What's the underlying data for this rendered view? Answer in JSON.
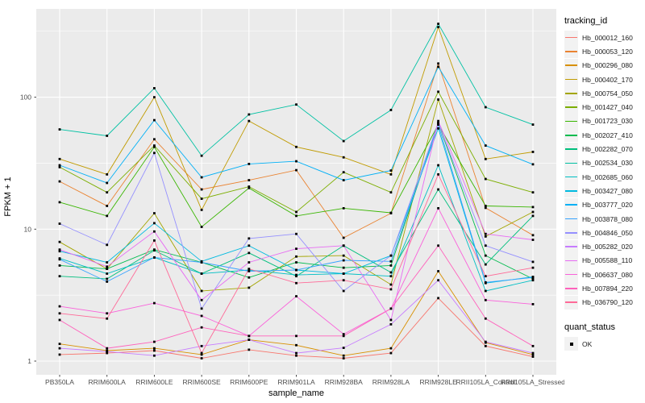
{
  "chart_data": {
    "type": "line",
    "title": "",
    "xlabel": "sample_name",
    "ylabel": "FPKM + 1",
    "y_scale": "log10",
    "y_ticks": [
      1,
      10,
      100
    ],
    "y_minor_ticks": [
      3.162,
      31.62,
      316.2
    ],
    "panel_background": "#EBEBEB",
    "gridline_color": "#FFFFFF",
    "point_shape": "square",
    "point_color": "#000000",
    "tick_label_color": "#4D4D4D",
    "x_categories": [
      "PB350LA",
      "RRIM600LA",
      "RRIM600LE",
      "RRIM600SE",
      "RRIM600PE",
      "RRIM901LA",
      "RRIM928BA",
      "RRIM928LA",
      "RRIM928LE",
      "RRII105LA_Control",
      "RRII105LA_Stressed"
    ],
    "series": [
      {
        "name": "Hb_000012_160",
        "color": "#F8766D",
        "values": [
          1.12,
          1.15,
          1.2,
          1.05,
          1.22,
          1.1,
          1.05,
          1.15,
          3.0,
          1.3,
          1.08
        ]
      },
      {
        "name": "Hb_000053_120",
        "color": "#EA8331",
        "values": [
          23,
          15,
          48,
          20,
          23.5,
          28,
          8.6,
          13.2,
          180,
          14.5,
          9.0
        ]
      },
      {
        "name": "Hb_000296_080",
        "color": "#D89000",
        "values": [
          1.35,
          1.2,
          1.25,
          1.12,
          1.45,
          1.32,
          1.1,
          1.25,
          4.8,
          1.38,
          1.12
        ]
      },
      {
        "name": "Hb_000402_170",
        "color": "#C09B00",
        "values": [
          34,
          26,
          100,
          14,
          66,
          42,
          35,
          26,
          340,
          34,
          38.5
        ]
      },
      {
        "name": "Hb_000754_050",
        "color": "#A3A500",
        "values": [
          8.0,
          5.0,
          13.2,
          3.4,
          3.6,
          6.2,
          6.3,
          3.8,
          96,
          8.8,
          13.5
        ]
      },
      {
        "name": "Hb_001427_040",
        "color": "#7CAE00",
        "values": [
          29.5,
          19,
          43,
          17,
          21,
          13.5,
          27,
          19,
          110,
          24,
          19
        ]
      },
      {
        "name": "Hb_001723_030",
        "color": "#39B600",
        "values": [
          16,
          12.6,
          42,
          10.4,
          20.5,
          12.6,
          14.4,
          13.3,
          62,
          15,
          14.7
        ]
      },
      {
        "name": "Hb_002027_410",
        "color": "#00BB4E",
        "values": [
          5.3,
          5.0,
          7.0,
          5.6,
          4.3,
          5.6,
          5.1,
          5.3,
          64,
          6.3,
          4.2
        ]
      },
      {
        "name": "Hb_002282_070",
        "color": "#00BF7D",
        "values": [
          4.4,
          4.2,
          6.9,
          4.6,
          6.6,
          4.4,
          7.5,
          4.7,
          20,
          5.4,
          12.6
        ]
      },
      {
        "name": "Hb_002534_030",
        "color": "#00C1A3",
        "values": [
          57,
          51,
          117,
          36,
          74,
          88,
          46.5,
          80,
          360,
          84,
          62
        ]
      },
      {
        "name": "Hb_002685_060",
        "color": "#00BFC4",
        "values": [
          6.0,
          4.6,
          6.1,
          4.6,
          4.9,
          4.5,
          4.6,
          4.4,
          30.5,
          3.4,
          4.1
        ]
      },
      {
        "name": "Hb_003427_080",
        "color": "#00BAE0",
        "values": [
          6.8,
          5.6,
          11.1,
          5.7,
          7.5,
          4.9,
          4.6,
          6.3,
          58,
          3.9,
          4.35
        ]
      },
      {
        "name": "Hb_003777_020",
        "color": "#00B0F6",
        "values": [
          30.5,
          22.4,
          67,
          24.7,
          31.2,
          32.7,
          23.5,
          27.8,
          170,
          43,
          31
        ]
      },
      {
        "name": "Hb_003878_080",
        "color": "#35A2FF",
        "values": [
          5.9,
          4.0,
          6.1,
          5.6,
          4.8,
          4.9,
          5.8,
          5.7,
          62,
          3.95,
          4.3
        ]
      },
      {
        "name": "Hb_004846_050",
        "color": "#9590FF",
        "values": [
          11,
          7.6,
          37.8,
          2.5,
          8.5,
          9.2,
          3.4,
          6.3,
          64,
          7.5,
          5.65
        ]
      },
      {
        "name": "Hb_005282_020",
        "color": "#C77CFF",
        "values": [
          1.25,
          1.18,
          1.1,
          1.3,
          1.45,
          1.15,
          1.26,
          1.9,
          4.1,
          1.4,
          1.15
        ]
      },
      {
        "name": "Hb_005588_110",
        "color": "#E76BF3",
        "values": [
          7.0,
          5.2,
          9.6,
          2.9,
          5.6,
          7.1,
          7.5,
          2.05,
          66,
          9.2,
          8.3
        ]
      },
      {
        "name": "Hb_006637_080",
        "color": "#FA62DB",
        "values": [
          2.6,
          2.3,
          2.75,
          2.2,
          1.55,
          3.1,
          1.6,
          2.5,
          14.4,
          2.9,
          2.7
        ]
      },
      {
        "name": "Hb_007894_220",
        "color": "#FF62BC",
        "values": [
          2.05,
          1.25,
          1.4,
          1.8,
          1.55,
          1.55,
          1.55,
          2.5,
          7.5,
          2.1,
          1.3
        ]
      },
      {
        "name": "Hb_036790_120",
        "color": "#FF6A98",
        "values": [
          2.3,
          2.1,
          8.2,
          1.15,
          5.0,
          3.9,
          4.1,
          3.5,
          26,
          4.4,
          5.1
        ]
      }
    ]
  },
  "legend": {
    "title": "tracking_id"
  },
  "legend2": {
    "title": "quant_status",
    "items": [
      "OK"
    ]
  }
}
